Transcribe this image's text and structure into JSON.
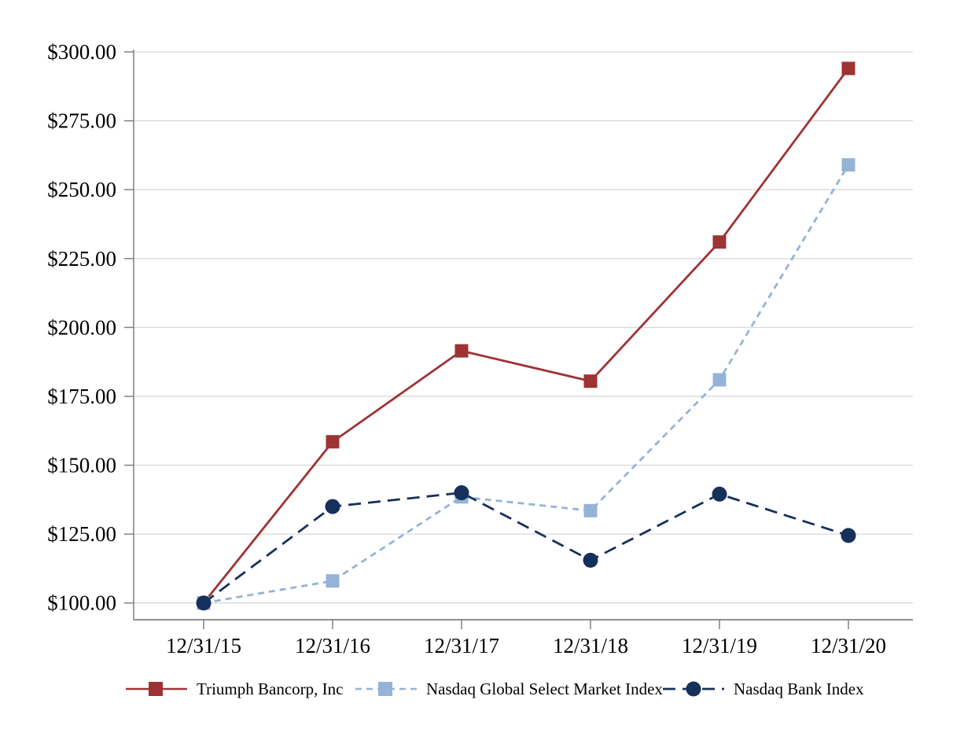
{
  "chart_data": {
    "type": "line",
    "title": "",
    "categories": [
      "12/31/15",
      "12/31/16",
      "12/31/17",
      "12/31/18",
      "12/31/19",
      "12/31/20"
    ],
    "series": [
      {
        "name": "Triumph Bancorp, Inc",
        "color": "#9e3334",
        "marker": "square",
        "line_style": "solid",
        "values": [
          100.0,
          158.5,
          191.5,
          180.5,
          231.0,
          294.0
        ]
      },
      {
        "name": "Nasdaq Global Select Market Index",
        "color": "#95b3d7",
        "marker": "square",
        "line_style": "dashed",
        "values": [
          100.0,
          108.0,
          138.5,
          133.5,
          181.0,
          259.0
        ]
      },
      {
        "name": "Nasdaq Bank Index",
        "color": "#16305c",
        "marker": "circle",
        "line_style": "long-dash",
        "values": [
          100.0,
          135.0,
          140.0,
          115.5,
          139.5,
          124.5
        ]
      }
    ],
    "y_axis": {
      "tick_labels": [
        "$300.00",
        "$275.00",
        "$250.00",
        "$225.00",
        "$200.00",
        "$175.00",
        "$150.00",
        "$125.00",
        "$100.00"
      ],
      "tick_values": [
        300,
        275,
        250,
        225,
        200,
        175,
        150,
        125,
        100
      ],
      "min": 94,
      "max": 300,
      "currency": "$"
    },
    "x_axis": {
      "label": ""
    },
    "grid": true,
    "legend_position": "bottom",
    "colors": {
      "gridline": "#d9d9d9",
      "axis": "#808080",
      "text": "#000000"
    }
  }
}
